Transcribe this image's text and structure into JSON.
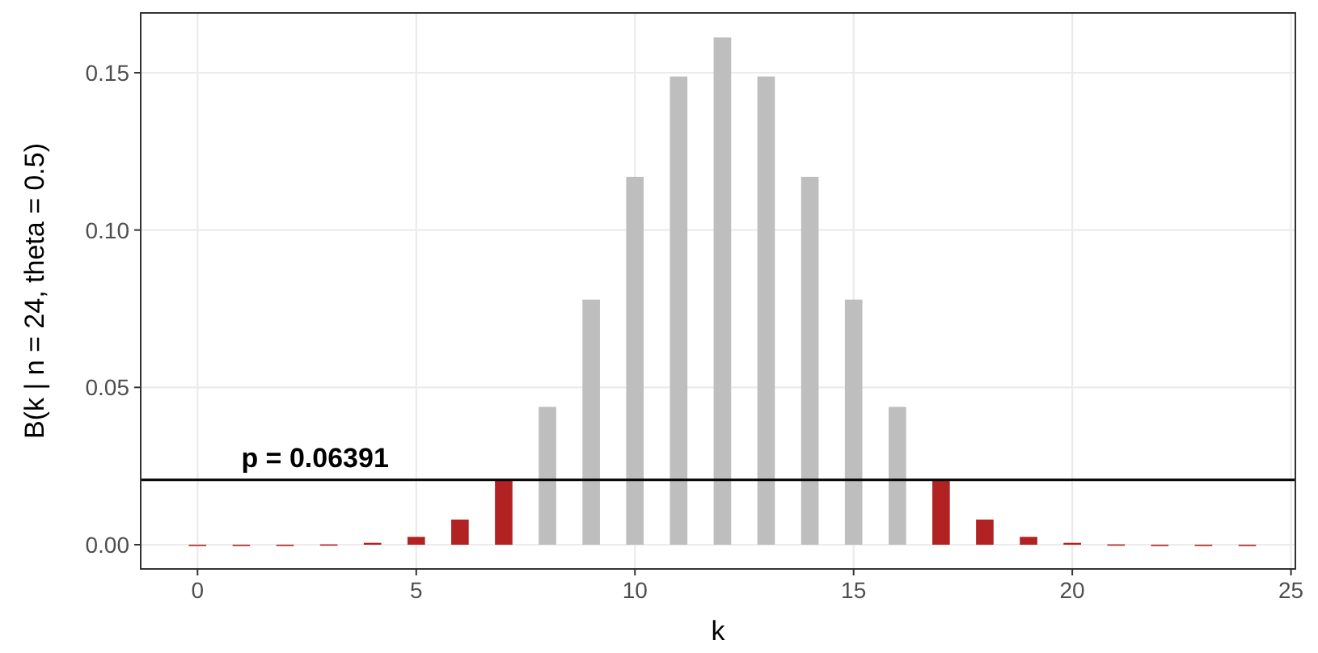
{
  "chart_data": {
    "type": "bar",
    "xlabel": "k",
    "ylabel": "B(k | n = 24, theta = 0.5)",
    "x": [
      0,
      1,
      2,
      3,
      4,
      5,
      6,
      7,
      8,
      9,
      10,
      11,
      12,
      13,
      14,
      15,
      16,
      17,
      18,
      19,
      20,
      21,
      22,
      23,
      24
    ],
    "values": [
      0,
      0,
      0,
      0.0001,
      0.0006,
      0.0025,
      0.008,
      0.0206,
      0.0438,
      0.0779,
      0.1169,
      0.1488,
      0.1612,
      0.1488,
      0.1169,
      0.0779,
      0.0438,
      0.0206,
      0.008,
      0.0025,
      0.0006,
      0.0001,
      0,
      0,
      0
    ],
    "colors": [
      "#b22222",
      "#b22222",
      "#b22222",
      "#b22222",
      "#b22222",
      "#b22222",
      "#b22222",
      "#b22222",
      "#bebebe",
      "#bebebe",
      "#bebebe",
      "#bebebe",
      "#bebebe",
      "#bebebe",
      "#bebebe",
      "#bebebe",
      "#bebebe",
      "#b22222",
      "#b22222",
      "#b22222",
      "#b22222",
      "#b22222",
      "#b22222",
      "#b22222",
      "#b22222"
    ],
    "xlim": [
      -1.3,
      25.1
    ],
    "xticks": [
      0,
      5,
      10,
      15,
      20,
      25
    ],
    "ylim": [
      -0.0077,
      0.169
    ],
    "yticks": [
      {
        "value": 0,
        "label": "0.00"
      },
      0.05,
      {
        "value": 0.1,
        "label": "0.10"
      },
      0.15
    ],
    "grid": true,
    "annotations": [
      "p = 0.06391"
    ],
    "ref_lines": [
      {
        "axis": "y",
        "value": 0.0206,
        "color": "#000000"
      }
    ]
  }
}
